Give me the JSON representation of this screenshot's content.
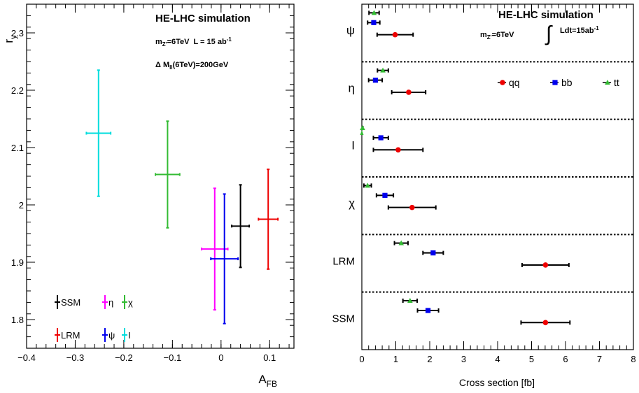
{
  "chart_data": [
    {
      "type": "scatter",
      "xlabel": "A",
      "xlabel_sub": "FB",
      "ylabel": "r",
      "ylabel_sub": "y",
      "xlim": [
        -0.4,
        0.15
      ],
      "ylim": [
        1.75,
        2.35
      ],
      "x_ticks": [
        {
          "v": -0.4,
          "label": "−0.4"
        },
        {
          "v": -0.3,
          "label": "−0.3"
        },
        {
          "v": -0.2,
          "label": "−0.2"
        },
        {
          "v": -0.1,
          "label": "−0.1"
        },
        {
          "v": 0,
          "label": "0"
        },
        {
          "v": 0.1,
          "label": "0.1"
        }
      ],
      "y_ticks": [
        {
          "v": 1.8,
          "label": "1.8"
        },
        {
          "v": 1.9,
          "label": "1.9"
        },
        {
          "v": 2.0,
          "label": "2"
        },
        {
          "v": 2.1,
          "label": "2.1"
        },
        {
          "v": 2.2,
          "label": "2.2"
        },
        {
          "v": 2.3,
          "label": "2.3"
        }
      ],
      "annotations": {
        "title": "HE-LHC simulation",
        "line1_a": "m",
        "line1_a_sub": "Z'",
        "line1_b": "=6TeV",
        "line1_c": "L = 15 ab",
        "line1_c_sup": "-1",
        "line2_a": "Δ M",
        "line2_a_sub": "ll",
        "line2_b": "(6TeV)=200GeV"
      },
      "series": [
        {
          "name": "SSM",
          "color": "#000000",
          "x": 0.04,
          "xerr": 0.018,
          "y": 1.963,
          "yerr": 0.072
        },
        {
          "name": "η",
          "color": "#ff00ff",
          "x": -0.013,
          "xerr": 0.027,
          "y": 1.923,
          "yerr": 0.106
        },
        {
          "name": "χ",
          "color": "#33bb33",
          "x": -0.11,
          "xerr": 0.025,
          "y": 2.053,
          "yerr": 0.093
        },
        {
          "name": "LRM",
          "color": "#ee0000",
          "x": 0.097,
          "xerr": 0.02,
          "y": 1.975,
          "yerr": 0.087
        },
        {
          "name": "ψ",
          "color": "#0000ee",
          "x": 0.007,
          "xerr": 0.028,
          "y": 1.906,
          "yerr": 0.113
        },
        {
          "name": "I",
          "color": "#00dddd",
          "x": -0.252,
          "xerr": 0.025,
          "y": 2.125,
          "yerr": 0.11
        }
      ]
    },
    {
      "type": "scatter",
      "xlabel": "Cross section [fb]",
      "xlim": [
        0,
        8
      ],
      "x_ticks": [
        {
          "v": 0,
          "label": "0"
        },
        {
          "v": 1,
          "label": "1"
        },
        {
          "v": 2,
          "label": "2"
        },
        {
          "v": 3,
          "label": "3"
        },
        {
          "v": 4,
          "label": "4"
        },
        {
          "v": 5,
          "label": "5"
        },
        {
          "v": 6,
          "label": "6"
        },
        {
          "v": 7,
          "label": "7"
        },
        {
          "v": 8,
          "label": "8"
        }
      ],
      "annotations": {
        "title": "HE-LHC simulation",
        "mass_a": "m",
        "mass_a_sub": "Z'",
        "mass_b": "=6TeV",
        "lumi": "Ldt=15ab",
        "lumi_sup": "-1"
      },
      "legend": [
        {
          "name": "qq",
          "color": "#ee0000",
          "marker": "circle"
        },
        {
          "name": "bb",
          "color": "#0000ee",
          "marker": "square"
        },
        {
          "name": "tt",
          "color": "#33bb33",
          "marker": "triangle"
        }
      ],
      "categories": [
        "ψ",
        "η",
        "I",
        "χ",
        "LRM",
        "SSM"
      ],
      "series": [
        {
          "name": "qq",
          "values": [
            0.98,
            1.38,
            1.07,
            1.48,
            5.41,
            5.41
          ],
          "errors": [
            0.53,
            0.5,
            0.73,
            0.7,
            0.69,
            0.72
          ]
        },
        {
          "name": "bb",
          "values": [
            0.35,
            0.4,
            0.56,
            0.68,
            2.1,
            1.95
          ],
          "errors": [
            0.18,
            0.2,
            0.22,
            0.25,
            0.3,
            0.31
          ]
        },
        {
          "name": "tt",
          "values": [
            0.36,
            0.62,
            0.02,
            0.17,
            1.16,
            1.42
          ],
          "errors": [
            0.15,
            0.16,
            0.01,
            0.11,
            0.2,
            0.21
          ]
        }
      ]
    }
  ]
}
